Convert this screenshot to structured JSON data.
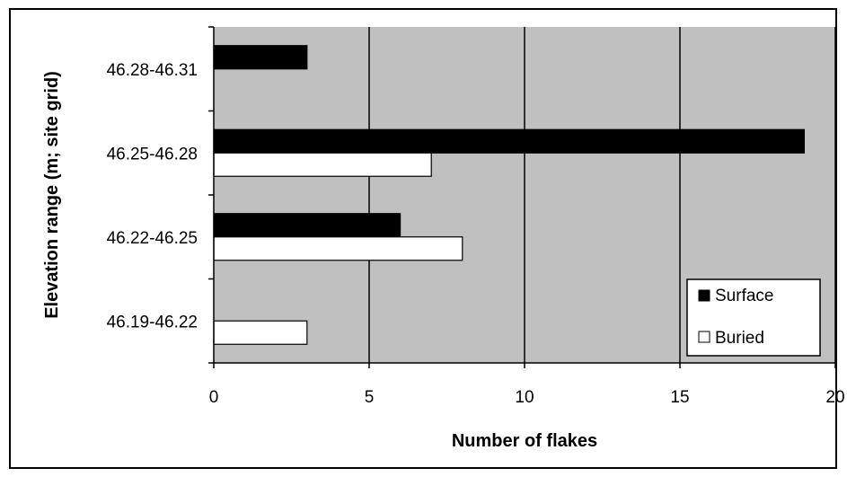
{
  "chart_data": {
    "type": "bar",
    "orientation": "horizontal",
    "categories": [
      "46.19-46.22",
      "46.22-46.25",
      "46.25-46.28",
      "46.28-46.31"
    ],
    "series": [
      {
        "name": "Surface",
        "values": [
          0,
          6,
          19,
          3
        ],
        "color": "#000000"
      },
      {
        "name": "Buried",
        "values": [
          3,
          8,
          7,
          0
        ],
        "color": "#ffffff"
      }
    ],
    "xlabel": "Number of flakes",
    "ylabel": "Elevation range (m; site grid)",
    "xlim": [
      0,
      20
    ],
    "xticks": [
      "0",
      "5",
      "10",
      "15",
      "20"
    ],
    "grid": "vertical major gridlines",
    "plot_background": "#c0c0c0",
    "legend_position": "bottom-right"
  }
}
